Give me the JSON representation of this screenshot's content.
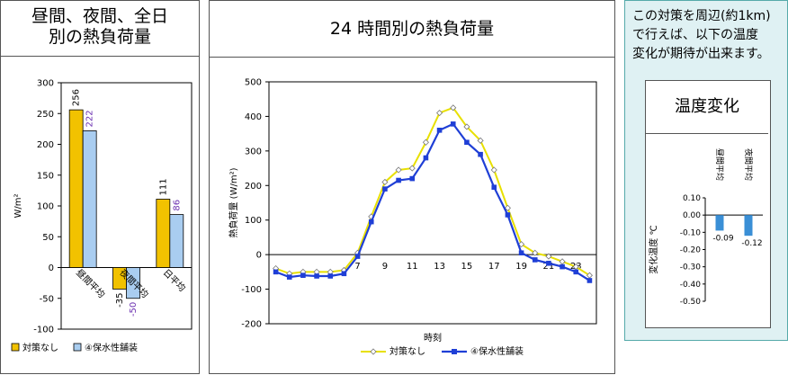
{
  "panel1": {
    "title_line1": "昼間、夜間、全日",
    "title_line2": "別の熱負荷量"
  },
  "panel2": {
    "title": "24 時間別の熱負荷量"
  },
  "panel3": {
    "description_line1": "この対策を周辺(約1km)",
    "description_line2": "で行えば、以下の温度",
    "description_line3": "変化が期待が出来ます。",
    "inner_title": "温度変化"
  },
  "colors": {
    "no_measure": "#f2c200",
    "no_measure_line": "#e8e000",
    "water_retentive": "#a9cdf0",
    "water_retentive_line": "#1f3fd6",
    "temp_bar": "#3a8fd6"
  },
  "chart_data": [
    {
      "type": "bar",
      "title": "",
      "ylabel": "W/m²",
      "ylim": [
        -100,
        300
      ],
      "yticks": [
        "300",
        "250",
        "200",
        "150",
        "100",
        "50",
        "0",
        "-50",
        "-100"
      ],
      "categories": [
        "昼間平均",
        "夜間平均",
        "日平均"
      ],
      "series": [
        {
          "name": "対策なし",
          "values": [
            256,
            -35,
            111
          ],
          "labels": [
            "256",
            "-35",
            "111"
          ]
        },
        {
          "name": "④保水性舗装",
          "values": [
            222,
            -50,
            86
          ],
          "labels": [
            "222",
            "-50",
            "86"
          ]
        }
      ],
      "legend": [
        "対策なし",
        "④保水性舗装"
      ],
      "legend_position": "bottom"
    },
    {
      "type": "line",
      "title": "",
      "xlabel": "時刻",
      "ylabel": "熱負荷量 (W/m²)",
      "ylim": [
        -200,
        500
      ],
      "yticks": [
        "500",
        "400",
        "300",
        "200",
        "100",
        "0",
        "-100",
        "-200"
      ],
      "xticks": [
        "7",
        "9",
        "11",
        "13",
        "15",
        "17",
        "19",
        "21",
        "23"
      ],
      "x": [
        1,
        2,
        3,
        4,
        5,
        6,
        7,
        8,
        9,
        10,
        11,
        12,
        13,
        14,
        15,
        16,
        17,
        18,
        19,
        20,
        21,
        22,
        23,
        24
      ],
      "series": [
        {
          "name": "対策なし",
          "values": [
            -40,
            -55,
            -50,
            -50,
            -50,
            -45,
            5,
            110,
            210,
            245,
            250,
            325,
            410,
            425,
            370,
            330,
            245,
            135,
            30,
            5,
            -5,
            -20,
            -35,
            -60
          ]
        },
        {
          "name": "④保水性舗装",
          "values": [
            -50,
            -65,
            -60,
            -62,
            -62,
            -55,
            -5,
            95,
            190,
            215,
            220,
            280,
            360,
            378,
            325,
            290,
            195,
            115,
            5,
            -15,
            -25,
            -35,
            -50,
            -75
          ]
        }
      ],
      "legend": [
        "対策なし",
        "④保水性舗装"
      ],
      "legend_position": "bottom"
    },
    {
      "type": "bar",
      "title": "",
      "ylabel": "変化温度 ℃",
      "ylim": [
        -0.5,
        0.1
      ],
      "yticks": [
        "0.10",
        "0.00",
        "-0.10",
        "-0.20",
        "-0.30",
        "-0.40",
        "-0.50"
      ],
      "categories": [
        "昼間平均",
        "夜間平均"
      ],
      "values": [
        -0.09,
        -0.12
      ],
      "labels": [
        "-0.09",
        "-0.12"
      ]
    }
  ]
}
